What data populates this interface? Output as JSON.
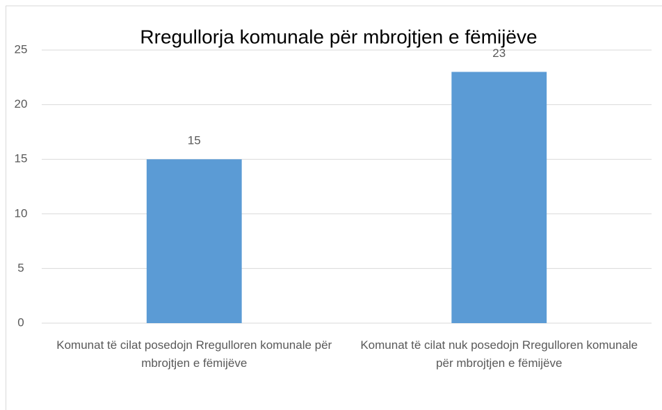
{
  "chart_data": {
    "type": "bar",
    "title": "Rregullorja komunale për mbrojtjen e fëmijëve",
    "categories": [
      "Komunat të cilat posedojn Rregulloren komunale për mbrojtjen e fëmijëve",
      "Komunat të cilat nuk posedojn Rregulloren komunale për mbrojtjen e fëmijëve"
    ],
    "values": [
      15,
      23
    ],
    "color": "#5b9bd5",
    "ylim": [
      0,
      25
    ],
    "yticks": [
      0,
      5,
      10,
      15,
      20,
      25
    ],
    "grid": true
  }
}
